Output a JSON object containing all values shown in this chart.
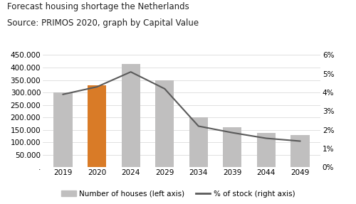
{
  "title_line1": "Forecast housing shortage the Netherlands",
  "title_line2": "Source: PRIMOS 2020, graph by Capital Value",
  "categories": [
    "2019",
    "2020",
    "2024",
    "2029",
    "2034",
    "2039",
    "2044",
    "2049"
  ],
  "bar_values": [
    300000,
    330000,
    415000,
    350000,
    200000,
    162000,
    137000,
    130000
  ],
  "bar_colors": [
    "#c0bfbf",
    "#d97b27",
    "#c0bfbf",
    "#c0bfbf",
    "#c0bfbf",
    "#c0bfbf",
    "#c0bfbf",
    "#c0bfbf"
  ],
  "line_values": [
    3.9,
    4.3,
    5.1,
    4.2,
    2.2,
    1.85,
    1.55,
    1.4
  ],
  "line_color": "#5a5a5a",
  "ylim_left": [
    0,
    450000
  ],
  "ylim_right": [
    0,
    6
  ],
  "yticks_left": [
    0,
    50000,
    100000,
    150000,
    200000,
    250000,
    300000,
    350000,
    400000,
    450000
  ],
  "ytick_labels_left": [
    ".",
    "50.000",
    "100.000",
    "150.000",
    "200.000",
    "250.000",
    "300.000",
    "350.000",
    "400.000",
    "450.000"
  ],
  "yticks_right": [
    0,
    1,
    2,
    3,
    4,
    5,
    6
  ],
  "ytick_labels_right": [
    "0%",
    "1%",
    "2%",
    "3%",
    "4%",
    "5%",
    "6%"
  ],
  "background_color": "#ffffff",
  "legend_bar_label": "Number of houses (left axis)",
  "legend_line_label": "% of stock (right axis)",
  "title_fontsize": 8.5,
  "axis_fontsize": 7.5,
  "legend_fontsize": 7.5
}
